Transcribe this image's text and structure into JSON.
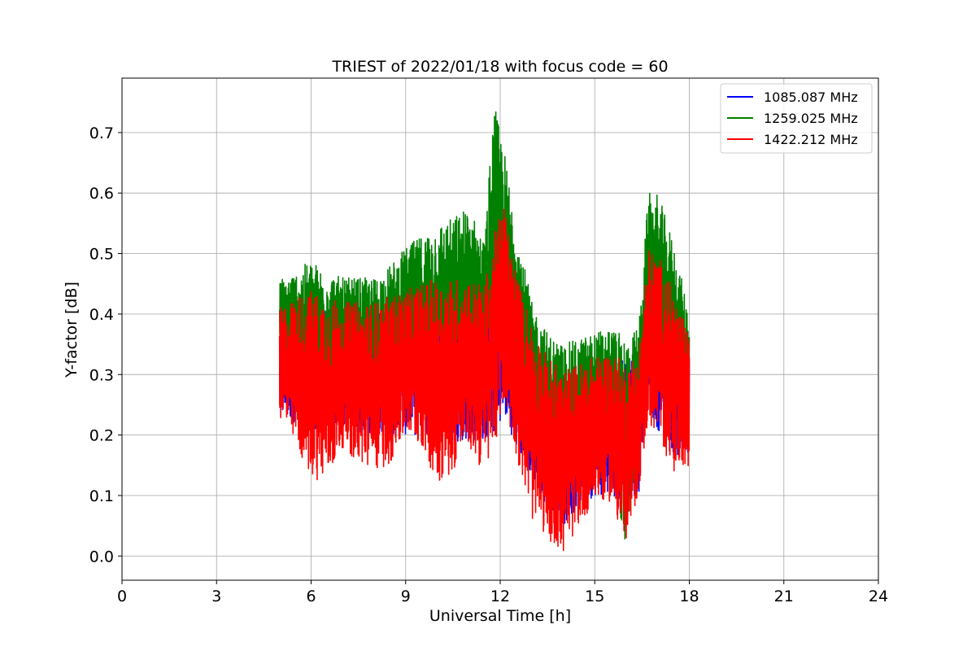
{
  "chart_data": {
    "type": "line",
    "title": "TRIEST of 2022/01/18 with focus code = 60",
    "xlabel": "Universal Time [h]",
    "ylabel": "Y-factor [dB]",
    "xlim": [
      0,
      24
    ],
    "ylim": [
      -0.04,
      0.79
    ],
    "x_ticks": [
      0,
      3,
      6,
      9,
      12,
      15,
      18,
      21,
      24
    ],
    "y_ticks": [
      0.0,
      0.1,
      0.2,
      0.3,
      0.4,
      0.5,
      0.6,
      0.7
    ],
    "x_tick_labels": [
      "0",
      "3",
      "6",
      "9",
      "12",
      "15",
      "18",
      "21",
      "24"
    ],
    "y_tick_labels": [
      "0.0",
      "0.1",
      "0.2",
      "0.3",
      "0.4",
      "0.5",
      "0.6",
      "0.7"
    ],
    "grid": true,
    "legend_position": "top-right",
    "series": [
      {
        "name": "1085.087 MHz",
        "color": "#0000ff",
        "x": [
          5.0,
          5.5,
          6.0,
          6.5,
          7.0,
          7.5,
          8.0,
          8.5,
          9.0,
          9.5,
          10.0,
          10.5,
          11.0,
          11.5,
          11.9,
          12.1,
          12.5,
          13.0,
          13.5,
          14.0,
          14.5,
          15.0,
          15.5,
          16.0,
          16.4,
          16.6,
          17.0,
          17.5,
          18.0
        ],
        "upper": [
          0.38,
          0.42,
          0.41,
          0.41,
          0.4,
          0.4,
          0.4,
          0.41,
          0.42,
          0.42,
          0.43,
          0.43,
          0.42,
          0.42,
          0.41,
          0.39,
          0.36,
          0.33,
          0.3,
          0.29,
          0.3,
          0.31,
          0.32,
          0.33,
          0.34,
          0.4,
          0.44,
          0.42,
          0.36
        ],
        "lower": [
          0.23,
          0.22,
          0.21,
          0.21,
          0.21,
          0.2,
          0.2,
          0.2,
          0.2,
          0.2,
          0.19,
          0.19,
          0.19,
          0.19,
          0.2,
          0.24,
          0.18,
          0.13,
          0.08,
          0.05,
          0.08,
          0.1,
          0.1,
          0.09,
          0.1,
          0.25,
          0.21,
          0.17,
          0.15
        ]
      },
      {
        "name": "1259.025 MHz",
        "color": "#008000",
        "x": [
          5.0,
          5.5,
          6.0,
          6.5,
          7.0,
          7.5,
          8.0,
          8.5,
          9.0,
          9.5,
          10.0,
          10.5,
          11.0,
          11.5,
          11.8,
          12.1,
          12.5,
          13.0,
          13.5,
          14.0,
          14.5,
          15.0,
          15.5,
          16.0,
          16.4,
          16.7,
          17.0,
          17.5,
          18.0
        ],
        "upper": [
          0.46,
          0.47,
          0.49,
          0.47,
          0.46,
          0.46,
          0.46,
          0.48,
          0.51,
          0.53,
          0.55,
          0.56,
          0.58,
          0.52,
          0.75,
          0.68,
          0.55,
          0.42,
          0.37,
          0.35,
          0.36,
          0.37,
          0.38,
          0.36,
          0.38,
          0.6,
          0.6,
          0.52,
          0.4
        ],
        "lower": [
          0.3,
          0.29,
          0.28,
          0.28,
          0.28,
          0.27,
          0.27,
          0.28,
          0.28,
          0.29,
          0.29,
          0.3,
          0.3,
          0.31,
          0.33,
          0.38,
          0.3,
          0.2,
          0.15,
          0.13,
          0.15,
          0.17,
          0.18,
          0.0,
          0.2,
          0.34,
          0.3,
          0.26,
          0.22
        ]
      },
      {
        "name": "1422.212 MHz",
        "color": "#ff0000",
        "x": [
          5.0,
          5.5,
          6.0,
          6.5,
          7.0,
          7.5,
          8.0,
          8.5,
          9.0,
          9.5,
          10.0,
          10.5,
          11.0,
          11.5,
          11.9,
          12.1,
          12.5,
          13.0,
          13.5,
          14.0,
          14.5,
          15.0,
          15.5,
          16.0,
          16.4,
          16.7,
          17.0,
          17.5,
          18.0
        ],
        "upper": [
          0.41,
          0.43,
          0.44,
          0.43,
          0.42,
          0.42,
          0.42,
          0.43,
          0.44,
          0.45,
          0.46,
          0.46,
          0.46,
          0.45,
          0.55,
          0.59,
          0.47,
          0.39,
          0.33,
          0.31,
          0.32,
          0.33,
          0.34,
          0.32,
          0.34,
          0.51,
          0.5,
          0.44,
          0.36
        ],
        "lower": [
          0.23,
          0.18,
          0.13,
          0.12,
          0.18,
          0.15,
          0.14,
          0.15,
          0.2,
          0.18,
          0.12,
          0.14,
          0.18,
          0.13,
          0.2,
          0.25,
          0.17,
          0.06,
          0.03,
          0.0,
          0.05,
          0.09,
          0.09,
          0.01,
          0.11,
          0.22,
          0.19,
          0.14,
          0.15
        ]
      }
    ]
  }
}
